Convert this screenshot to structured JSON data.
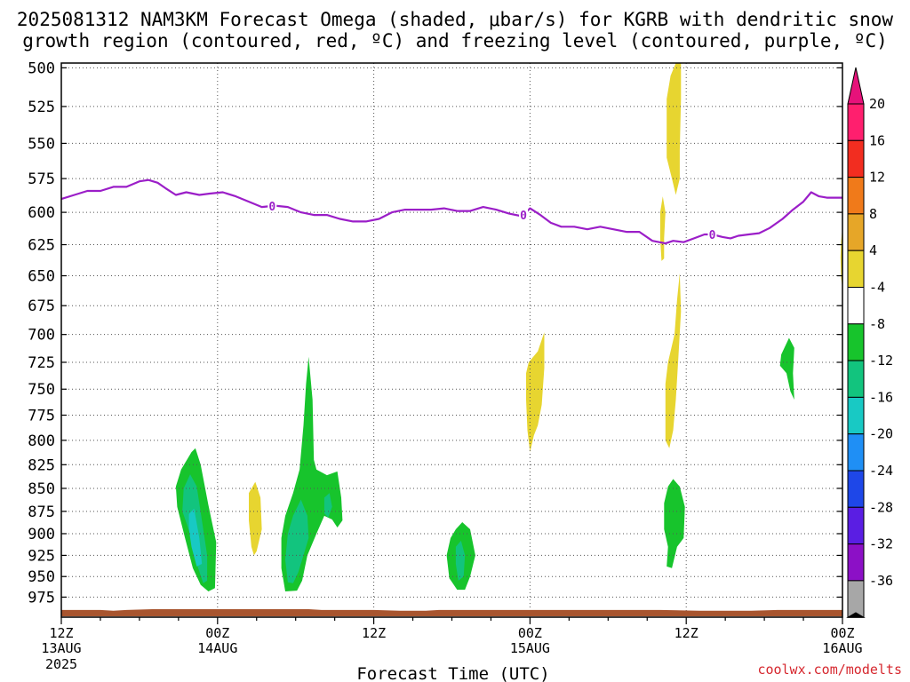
{
  "title_line1": "2025081312 NAM3KM Forecast Omega (shaded, μbar/s) for KGRB with dendritic snow",
  "title_line2": "growth region (contoured, red, ºC) and freezing level (contoured, purple, ºC)",
  "credit": "coolwx.com/modelts",
  "chart_data": {
    "type": "heatmap",
    "xlabel": "Forecast Time (UTC)",
    "ylabel": "",
    "x_range_hours": [
      0,
      60
    ],
    "y_range_mb": [
      1000,
      497
    ],
    "y_ticks": [
      500,
      525,
      550,
      575,
      600,
      625,
      650,
      675,
      700,
      725,
      750,
      775,
      800,
      825,
      850,
      875,
      900,
      925,
      950,
      975
    ],
    "x_ticks": [
      {
        "hour": 0,
        "line1": "12Z",
        "line2": "13AUG",
        "line3": "2025"
      },
      {
        "hour": 12,
        "line1": "00Z",
        "line2": "14AUG",
        "line3": ""
      },
      {
        "hour": 24,
        "line1": "12Z",
        "line2": "",
        "line3": ""
      },
      {
        "hour": 36,
        "line1": "00Z",
        "line2": "15AUG",
        "line3": ""
      },
      {
        "hour": 48,
        "line1": "12Z",
        "line2": "",
        "line3": ""
      },
      {
        "hour": 60,
        "line1": "00Z",
        "line2": "16AUG",
        "line3": ""
      }
    ],
    "grid": true,
    "colorbar": {
      "labels": [
        "20",
        "16",
        "12",
        "8",
        "4",
        "-4",
        "-8",
        "-12",
        "-16",
        "-20",
        "-24",
        "-28",
        "-32",
        "-36"
      ],
      "colors": [
        "#ff1f6e",
        "#f22d20",
        "#f07a1a",
        "#e6a628",
        "#e7d530",
        "#ffffff",
        "#17c42c",
        "#12c47e",
        "#18c9c4",
        "#1f8ff5",
        "#1e47e8",
        "#5a1ee3",
        "#8c10c6",
        "#a7a7a7",
        "#000000"
      ],
      "top_arrow_color": "#e6127a",
      "bottom_arrow_color": "#000000"
    },
    "freezing_level": {
      "label": "0",
      "color": "#9b1ec8",
      "label_hours": [
        16.2,
        35.5,
        50.0
      ],
      "points": [
        [
          0.0,
          590
        ],
        [
          1.0,
          587
        ],
        [
          2.0,
          584
        ],
        [
          3.0,
          584
        ],
        [
          4.0,
          581
        ],
        [
          5.0,
          581
        ],
        [
          6.0,
          577
        ],
        [
          6.7,
          576
        ],
        [
          7.4,
          578
        ],
        [
          8.0,
          582
        ],
        [
          8.8,
          587
        ],
        [
          9.6,
          585
        ],
        [
          10.6,
          587
        ],
        [
          11.4,
          586
        ],
        [
          12.4,
          585
        ],
        [
          13.4,
          588
        ],
        [
          14.4,
          592
        ],
        [
          15.4,
          596
        ],
        [
          16.4,
          595
        ],
        [
          17.4,
          596
        ],
        [
          18.4,
          600
        ],
        [
          19.4,
          602
        ],
        [
          20.4,
          602
        ],
        [
          21.4,
          605
        ],
        [
          22.4,
          607
        ],
        [
          23.4,
          607
        ],
        [
          24.4,
          605
        ],
        [
          25.4,
          600
        ],
        [
          26.4,
          598
        ],
        [
          27.4,
          598
        ],
        [
          28.4,
          598
        ],
        [
          29.4,
          597
        ],
        [
          30.4,
          599
        ],
        [
          31.4,
          599
        ],
        [
          32.4,
          596
        ],
        [
          33.4,
          598
        ],
        [
          34.4,
          601
        ],
        [
          35.4,
          603
        ],
        [
          36.0,
          597
        ],
        [
          36.8,
          602
        ],
        [
          37.6,
          608
        ],
        [
          38.4,
          611
        ],
        [
          39.4,
          611
        ],
        [
          40.4,
          613
        ],
        [
          41.4,
          611
        ],
        [
          42.4,
          613
        ],
        [
          43.4,
          615
        ],
        [
          44.4,
          615
        ],
        [
          45.4,
          622
        ],
        [
          46.4,
          624
        ],
        [
          47.0,
          622
        ],
        [
          47.8,
          623
        ],
        [
          48.6,
          620
        ],
        [
          49.4,
          617
        ],
        [
          50.0,
          617
        ],
        [
          50.8,
          619
        ],
        [
          51.4,
          620
        ],
        [
          52.0,
          618
        ],
        [
          52.8,
          617
        ],
        [
          53.6,
          616
        ],
        [
          54.4,
          612
        ],
        [
          55.4,
          605
        ],
        [
          56.2,
          598
        ],
        [
          57.0,
          592
        ],
        [
          57.6,
          585
        ],
        [
          58.2,
          588
        ],
        [
          58.8,
          589
        ],
        [
          59.5,
          589
        ],
        [
          60.0,
          589
        ]
      ]
    },
    "surface": {
      "color": "#a8552f",
      "points": [
        [
          0,
          991
        ],
        [
          3,
          991
        ],
        [
          4,
          992
        ],
        [
          5,
          991
        ],
        [
          7,
          990
        ],
        [
          12,
          990
        ],
        [
          16,
          990
        ],
        [
          19,
          990
        ],
        [
          20,
          991
        ],
        [
          24,
          991
        ],
        [
          26,
          992
        ],
        [
          28,
          992
        ],
        [
          29,
          991
        ],
        [
          33,
          991
        ],
        [
          40,
          991
        ],
        [
          46,
          991
        ],
        [
          49,
          992
        ],
        [
          53,
          992
        ],
        [
          55,
          991
        ],
        [
          60,
          991
        ]
      ]
    },
    "omega_regions": [
      {
        "value": -6,
        "color": "#17c42c",
        "points": [
          [
            9.2,
            830
          ],
          [
            10.0,
            812
          ],
          [
            10.3,
            808
          ],
          [
            10.7,
            825
          ],
          [
            11.3,
            868
          ],
          [
            11.9,
            910
          ],
          [
            11.8,
            964
          ],
          [
            11.3,
            968
          ],
          [
            10.7,
            960
          ],
          [
            10.1,
            940
          ],
          [
            9.5,
            905
          ],
          [
            8.9,
            870
          ],
          [
            8.8,
            848
          ]
        ]
      },
      {
        "value": -10,
        "color": "#12c47e",
        "points": [
          [
            9.4,
            850
          ],
          [
            9.9,
            835
          ],
          [
            10.4,
            848
          ],
          [
            10.8,
            885
          ],
          [
            11.2,
            925
          ],
          [
            11.2,
            955
          ],
          [
            10.9,
            958
          ],
          [
            10.4,
            935
          ],
          [
            9.9,
            900
          ],
          [
            9.3,
            875
          ]
        ]
      },
      {
        "value": -14,
        "color": "#18c9c4",
        "points": [
          [
            9.8,
            878
          ],
          [
            10.2,
            872
          ],
          [
            10.6,
            905
          ],
          [
            10.8,
            935
          ],
          [
            10.4,
            938
          ],
          [
            10.0,
            915
          ],
          [
            9.8,
            895
          ]
        ]
      },
      {
        "value": -6,
        "color": "#17c42c",
        "points": [
          [
            18.6,
            785
          ],
          [
            18.8,
            745
          ],
          [
            19.0,
            720
          ],
          [
            19.3,
            760
          ],
          [
            19.4,
            820
          ],
          [
            19.6,
            830
          ],
          [
            20.4,
            836
          ],
          [
            21.2,
            832
          ],
          [
            21.5,
            860
          ],
          [
            21.6,
            885
          ],
          [
            21.2,
            893
          ],
          [
            20.8,
            884
          ],
          [
            20.2,
            880
          ],
          [
            19.6,
            900
          ],
          [
            18.9,
            925
          ],
          [
            18.5,
            955
          ],
          [
            18.1,
            967
          ],
          [
            17.2,
            968
          ],
          [
            16.9,
            940
          ],
          [
            16.9,
            905
          ],
          [
            17.2,
            880
          ],
          [
            17.8,
            855
          ],
          [
            18.3,
            830
          ]
        ]
      },
      {
        "value": -10,
        "color": "#12c47e",
        "points": [
          [
            17.8,
            880
          ],
          [
            18.4,
            862
          ],
          [
            18.9,
            880
          ],
          [
            19.0,
            905
          ],
          [
            18.6,
            925
          ],
          [
            18.2,
            945
          ],
          [
            17.8,
            958
          ],
          [
            17.4,
            957
          ],
          [
            17.2,
            930
          ],
          [
            17.4,
            900
          ]
        ]
      },
      {
        "value": -10,
        "color": "#12c47e",
        "points": [
          [
            20.2,
            860
          ],
          [
            20.6,
            855
          ],
          [
            20.8,
            870
          ],
          [
            20.5,
            882
          ],
          [
            20.2,
            877
          ]
        ]
      },
      {
        "value": -6,
        "color": "#17c42c",
        "points": [
          [
            30.3,
            895
          ],
          [
            30.8,
            887
          ],
          [
            31.4,
            895
          ],
          [
            31.8,
            925
          ],
          [
            31.4,
            950
          ],
          [
            31.0,
            966
          ],
          [
            30.4,
            966
          ],
          [
            29.8,
            952
          ],
          [
            29.6,
            925
          ],
          [
            29.9,
            905
          ]
        ]
      },
      {
        "value": -10,
        "color": "#12c47e",
        "points": [
          [
            30.3,
            915
          ],
          [
            30.7,
            908
          ],
          [
            31.0,
            925
          ],
          [
            30.9,
            950
          ],
          [
            30.5,
            955
          ],
          [
            30.3,
            935
          ]
        ]
      },
      {
        "value": -6,
        "color": "#17c42c",
        "points": [
          [
            46.6,
            848
          ],
          [
            47.0,
            840
          ],
          [
            47.5,
            848
          ],
          [
            47.9,
            870
          ],
          [
            47.8,
            905
          ],
          [
            47.3,
            915
          ],
          [
            46.9,
            940
          ],
          [
            46.5,
            938
          ],
          [
            46.6,
            915
          ],
          [
            46.3,
            895
          ],
          [
            46.3,
            866
          ]
        ]
      },
      {
        "value": -6,
        "color": "#17c42c",
        "points": [
          [
            55.3,
            718
          ],
          [
            55.9,
            703
          ],
          [
            56.3,
            712
          ],
          [
            56.2,
            735
          ],
          [
            56.3,
            760
          ],
          [
            56.0,
            752
          ],
          [
            55.7,
            735
          ],
          [
            55.2,
            728
          ]
        ]
      },
      {
        "value": 6,
        "color": "#e7d530",
        "points": [
          [
            14.4,
            855
          ],
          [
            14.9,
            843
          ],
          [
            15.3,
            860
          ],
          [
            15.4,
            895
          ],
          [
            15.0,
            920
          ],
          [
            14.8,
            925
          ],
          [
            14.6,
            915
          ],
          [
            14.4,
            885
          ]
        ]
      },
      {
        "value": 6,
        "color": "#e7d530",
        "points": [
          [
            35.9,
            725
          ],
          [
            36.6,
            715
          ],
          [
            37.1,
            698
          ],
          [
            37.1,
            730
          ],
          [
            36.9,
            765
          ],
          [
            36.6,
            785
          ],
          [
            36.3,
            795
          ],
          [
            36.0,
            812
          ],
          [
            35.8,
            790
          ],
          [
            35.7,
            760
          ],
          [
            35.7,
            735
          ]
        ]
      },
      {
        "value": 6,
        "color": "#e7d530",
        "points": [
          [
            46.5,
            520
          ],
          [
            46.8,
            505
          ],
          [
            47.2,
            497
          ],
          [
            47.6,
            497
          ],
          [
            47.6,
            520
          ],
          [
            47.5,
            555
          ],
          [
            47.5,
            575
          ],
          [
            47.2,
            587
          ],
          [
            46.9,
            575
          ],
          [
            46.5,
            560
          ]
        ]
      },
      {
        "value": 6,
        "color": "#e7d530",
        "points": [
          [
            46.0,
            600
          ],
          [
            46.2,
            588
          ],
          [
            46.4,
            600
          ],
          [
            46.3,
            620
          ],
          [
            46.3,
            636
          ],
          [
            46.1,
            638
          ],
          [
            46.0,
            620
          ]
        ]
      },
      {
        "value": 6,
        "color": "#e7d530",
        "points": [
          [
            46.6,
            725
          ],
          [
            47.1,
            700
          ],
          [
            47.3,
            670
          ],
          [
            47.5,
            648
          ],
          [
            47.6,
            680
          ],
          [
            47.4,
            720
          ],
          [
            47.2,
            760
          ],
          [
            47.0,
            790
          ],
          [
            46.7,
            808
          ],
          [
            46.4,
            800
          ],
          [
            46.4,
            770
          ],
          [
            46.4,
            745
          ]
        ]
      },
      {
        "value": 6,
        "color": "#e7d530",
        "points": [
          [
            59.9,
            622
          ],
          [
            60.0,
            612
          ],
          [
            60.0,
            660
          ],
          [
            59.9,
            652
          ],
          [
            59.85,
            635
          ]
        ]
      }
    ]
  }
}
